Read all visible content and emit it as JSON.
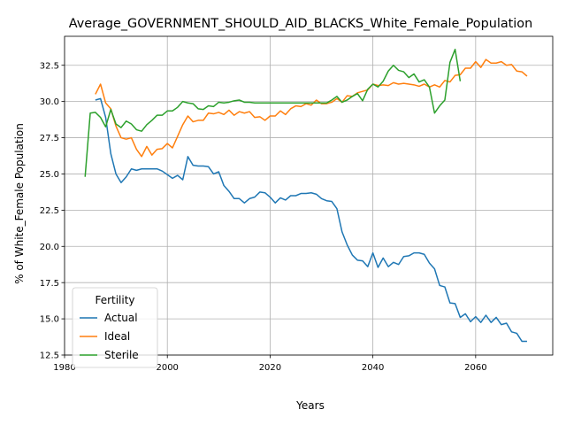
{
  "chart_data": {
    "type": "line",
    "title": "Average_GOVERNMENT_SHOULD_AID_BLACKS_White_Female_Population",
    "xlabel": "Years",
    "ylabel": "% of White_Female Population",
    "xlim": [
      1980,
      2075
    ],
    "ylim": [
      12.5,
      34.5
    ],
    "xticks": [
      1980,
      2000,
      2020,
      2040,
      2060
    ],
    "yticks": [
      12.5,
      15.0,
      17.5,
      20.0,
      22.5,
      25.0,
      27.5,
      30.0,
      32.5
    ],
    "grid": true,
    "legend": {
      "title": "Fertility",
      "position": "lower-left"
    },
    "series": [
      {
        "name": "Actual",
        "color": "#1f77b4",
        "x": [
          1986,
          1987,
          1988,
          1989,
          1990,
          1991,
          1992,
          1993,
          1994,
          1995,
          1996,
          1997,
          1998,
          1999,
          2000,
          2001,
          2002,
          2003,
          2004,
          2005,
          2006,
          2007,
          2008,
          2009,
          2010,
          2011,
          2012,
          2013,
          2014,
          2015,
          2016,
          2017,
          2018,
          2019,
          2020,
          2021,
          2022,
          2023,
          2024,
          2025,
          2026,
          2027,
          2028,
          2029,
          2030,
          2031,
          2032,
          2033,
          2034,
          2035,
          2036,
          2037,
          2038,
          2039,
          2040,
          2041,
          2042,
          2043,
          2044,
          2045,
          2046,
          2047,
          2048,
          2049,
          2050,
          2051,
          2052,
          2053,
          2054,
          2055,
          2056,
          2057,
          2058,
          2059,
          2060,
          2061,
          2062,
          2063,
          2064,
          2065,
          2066,
          2067,
          2068,
          2069,
          2070
        ],
        "y": [
          30.1,
          30.2,
          28.9,
          26.4,
          25.0,
          24.4,
          24.8,
          25.35,
          25.25,
          25.35,
          25.35,
          25.35,
          25.35,
          25.2,
          24.95,
          24.7,
          24.9,
          24.6,
          26.2,
          25.6,
          25.55,
          25.55,
          25.5,
          25.0,
          25.15,
          24.2,
          23.8,
          23.3,
          23.3,
          23.0,
          23.3,
          23.4,
          23.75,
          23.7,
          23.4,
          23.0,
          23.35,
          23.2,
          23.5,
          23.5,
          23.65,
          23.65,
          23.7,
          23.6,
          23.3,
          23.15,
          23.1,
          22.6,
          21.0,
          20.1,
          19.4,
          19.05,
          19.0,
          18.6,
          19.55,
          18.55,
          19.2,
          18.6,
          18.9,
          18.75,
          19.3,
          19.35,
          19.55,
          19.55,
          19.45,
          18.85,
          18.45,
          17.3,
          17.2,
          16.1,
          16.05,
          15.1,
          15.35,
          14.8,
          15.15,
          14.75,
          15.25,
          14.75,
          15.1,
          14.6,
          14.7,
          14.1,
          14.0,
          13.45,
          13.45
        ]
      },
      {
        "name": "Ideal",
        "color": "#ff7f0e",
        "x": [
          1986,
          1987,
          1988,
          1989,
          1990,
          1991,
          1992,
          1993,
          1994,
          1995,
          1996,
          1997,
          1998,
          1999,
          2000,
          2001,
          2002,
          2003,
          2004,
          2005,
          2006,
          2007,
          2008,
          2009,
          2010,
          2011,
          2012,
          2013,
          2014,
          2015,
          2016,
          2017,
          2018,
          2019,
          2020,
          2021,
          2022,
          2023,
          2024,
          2025,
          2026,
          2027,
          2028,
          2029,
          2030,
          2031,
          2032,
          2033,
          2034,
          2035,
          2036,
          2037,
          2038,
          2039,
          2040,
          2041,
          2042,
          2043,
          2044,
          2045,
          2046,
          2047,
          2048,
          2049,
          2050,
          2051,
          2052,
          2053,
          2054,
          2055,
          2056,
          2057,
          2058,
          2059,
          2060,
          2061,
          2062,
          2063,
          2064,
          2065,
          2066,
          2067,
          2068,
          2069,
          2070
        ],
        "y": [
          30.5,
          31.2,
          29.9,
          29.5,
          28.3,
          27.5,
          27.4,
          27.5,
          26.7,
          26.2,
          26.9,
          26.3,
          26.7,
          26.75,
          27.1,
          26.8,
          27.6,
          28.4,
          29.0,
          28.6,
          28.7,
          28.7,
          29.2,
          29.15,
          29.25,
          29.1,
          29.4,
          29.05,
          29.3,
          29.2,
          29.3,
          28.9,
          28.95,
          28.7,
          29.0,
          29.0,
          29.35,
          29.1,
          29.5,
          29.7,
          29.65,
          29.85,
          29.75,
          30.1,
          29.85,
          29.85,
          29.95,
          30.2,
          29.95,
          30.4,
          30.35,
          30.6,
          30.7,
          30.8,
          31.2,
          31.1,
          31.15,
          31.1,
          31.3,
          31.2,
          31.25,
          31.2,
          31.15,
          31.05,
          31.2,
          31.0,
          31.15,
          31.0,
          31.45,
          31.35,
          31.8,
          31.85,
          32.3,
          32.3,
          32.75,
          32.35,
          32.9,
          32.65,
          32.65,
          32.75,
          32.5,
          32.55,
          32.1,
          32.05,
          31.75
        ]
      },
      {
        "name": "Sterile",
        "color": "#2ca02c",
        "x": [
          1984,
          1985,
          1986,
          1987,
          1988,
          1989,
          1990,
          1991,
          1992,
          1993,
          1994,
          1995,
          1996,
          1997,
          1998,
          1999,
          2000,
          2001,
          2002,
          2003,
          2004,
          2005,
          2006,
          2007,
          2008,
          2009,
          2010,
          2011,
          2012,
          2013,
          2014,
          2015,
          2016,
          2017,
          2018,
          2019,
          2020,
          2021,
          2022,
          2023,
          2024,
          2025,
          2026,
          2027,
          2028,
          2029,
          2030,
          2031,
          2032,
          2033,
          2034,
          2035,
          2036,
          2037,
          2038,
          2039,
          2040,
          2041,
          2042,
          2043,
          2044,
          2045,
          2046,
          2047,
          2048,
          2049,
          2050,
          2051,
          2052,
          2053,
          2054,
          2055,
          2056,
          2057
        ],
        "y": [
          24.8,
          29.2,
          29.25,
          28.9,
          28.25,
          29.45,
          28.45,
          28.2,
          28.65,
          28.45,
          28.05,
          27.95,
          28.4,
          28.7,
          29.05,
          29.05,
          29.35,
          29.35,
          29.6,
          30.0,
          29.9,
          29.85,
          29.5,
          29.45,
          29.7,
          29.65,
          29.95,
          29.9,
          29.95,
          30.05,
          30.1,
          29.95,
          29.95,
          29.9,
          29.9,
          29.9,
          29.9,
          29.9,
          29.9,
          29.9,
          29.9,
          29.9,
          29.9,
          29.9,
          29.9,
          29.9,
          29.9,
          29.9,
          30.1,
          30.35,
          29.95,
          30.1,
          30.35,
          30.55,
          30.05,
          30.85,
          31.2,
          31.0,
          31.4,
          32.1,
          32.5,
          32.15,
          32.05,
          31.65,
          31.9,
          31.35,
          31.5,
          31.0,
          29.2,
          29.7,
          30.1,
          32.7,
          33.6,
          31.4
        ]
      }
    ]
  }
}
